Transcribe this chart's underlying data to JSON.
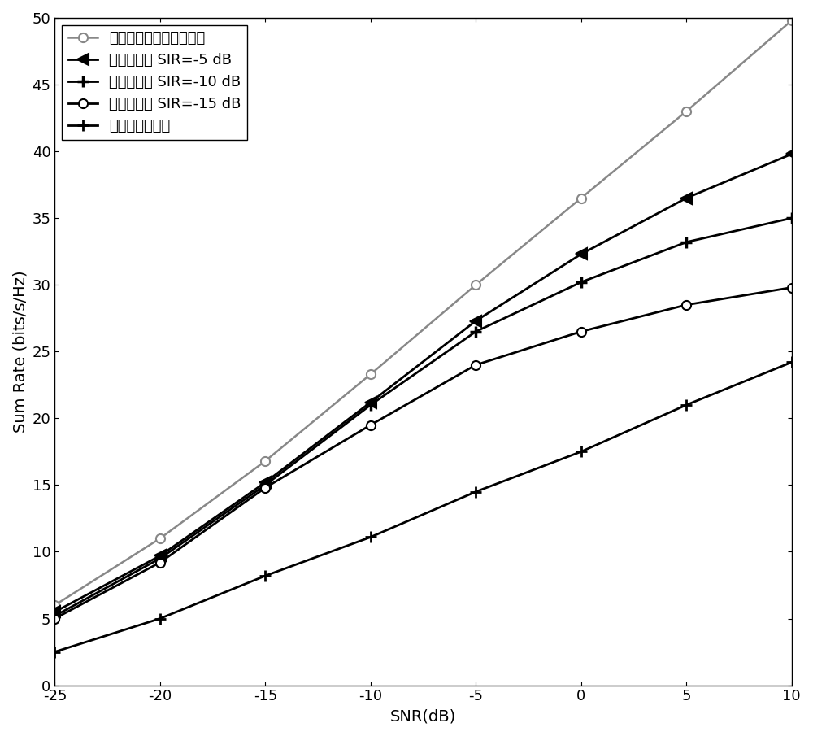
{
  "snr": [
    -25,
    -20,
    -15,
    -10,
    -5,
    0,
    5,
    10
  ],
  "series": [
    {
      "label": "没有自干扰的全双工设计",
      "color": "#888888",
      "linewidth": 1.8,
      "marker": "o",
      "markersize": 8,
      "markerfacecolor": "white",
      "markeredgecolor": "#888888",
      "markeredgewidth": 1.5,
      "values": [
        6.0,
        11.0,
        16.8,
        23.3,
        30.0,
        36.5,
        43.0,
        49.8
      ]
    },
    {
      "label": "提出的设计 SIR=-5 dB",
      "color": "#000000",
      "linewidth": 2.0,
      "marker": "<",
      "markersize": 10,
      "markerfacecolor": "#000000",
      "markeredgecolor": "#000000",
      "markeredgewidth": 1.5,
      "values": [
        5.5,
        9.7,
        15.2,
        21.2,
        27.3,
        32.3,
        36.5,
        39.8
      ]
    },
    {
      "label": "提出的设计 SIR=-10 dB",
      "color": "#000000",
      "linewidth": 2.0,
      "marker": "plus",
      "markersize": 10,
      "markerfacecolor": "#000000",
      "markeredgecolor": "#000000",
      "markeredgewidth": 2.5,
      "values": [
        5.2,
        9.5,
        15.0,
        21.0,
        26.5,
        30.2,
        33.2,
        35.0
      ]
    },
    {
      "label": "提出的设计 SIR=-15 dB",
      "color": "#000000",
      "linewidth": 2.0,
      "marker": "o",
      "markersize": 8,
      "markerfacecolor": "white",
      "markeredgecolor": "#000000",
      "markeredgewidth": 1.5,
      "values": [
        5.0,
        9.2,
        14.8,
        19.5,
        24.0,
        26.5,
        28.5,
        29.8
      ]
    },
    {
      "label": "混合半双工设计",
      "color": "#000000",
      "linewidth": 2.0,
      "marker": "plus",
      "markersize": 10,
      "markerfacecolor": "#000000",
      "markeredgecolor": "#000000",
      "markeredgewidth": 2.0,
      "values": [
        2.5,
        5.0,
        8.2,
        11.1,
        14.5,
        17.5,
        21.0,
        24.2
      ]
    }
  ],
  "xlabel": "SNR(dB)",
  "ylabel": "Sum Rate (bits/s/Hz)",
  "xlim": [
    -25,
    10
  ],
  "ylim": [
    0,
    50
  ],
  "xticks": [
    -25,
    -20,
    -15,
    -10,
    -5,
    0,
    5,
    10
  ],
  "yticks": [
    0,
    5,
    10,
    15,
    20,
    25,
    30,
    35,
    40,
    45,
    50
  ],
  "legend_loc": "upper left",
  "background_color": "#ffffff",
  "font_size_label": 14,
  "font_size_tick": 13,
  "font_size_legend": 13
}
